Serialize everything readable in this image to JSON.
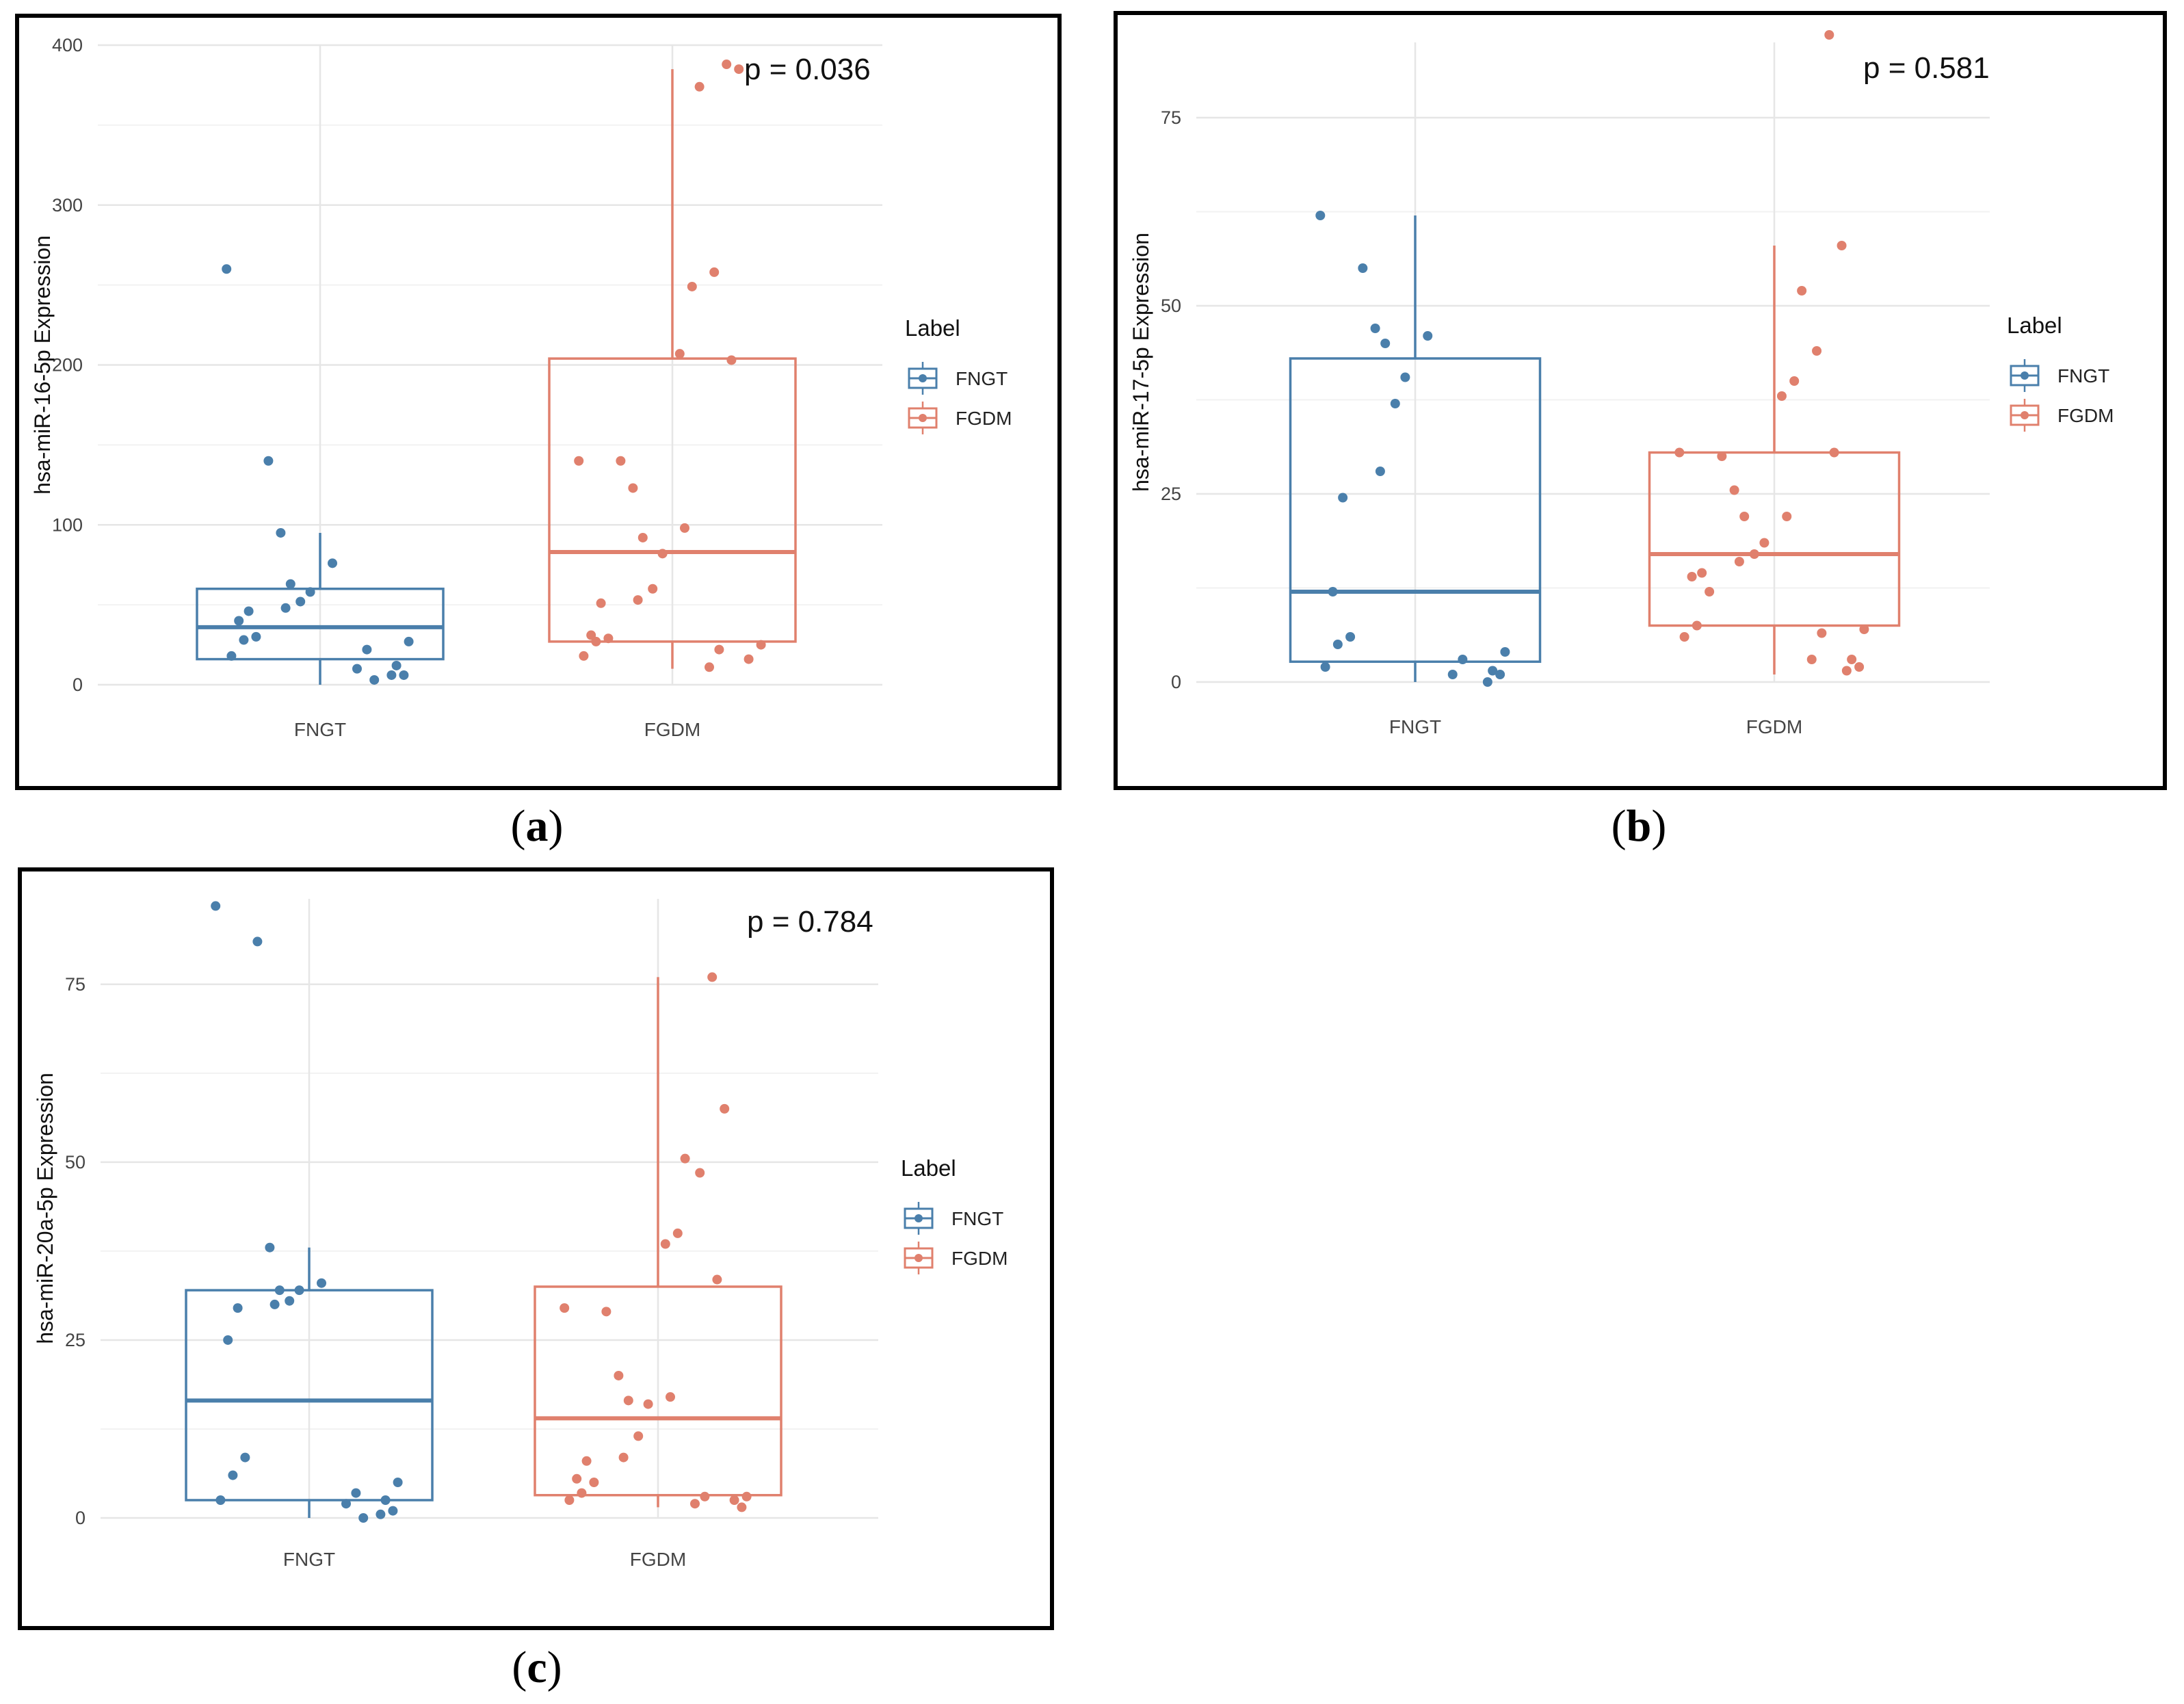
{
  "chart_data": [
    {
      "type": "box",
      "panel_label": "a",
      "ylabel": "hsa-miR-16-5p Expression",
      "categories": [
        "FNGT",
        "FGDM"
      ],
      "ylim": [
        0,
        400
      ],
      "yticks": [
        0,
        100,
        200,
        300,
        400
      ],
      "annotation": "p = 0.036",
      "legend_title": "Label",
      "legend_position": "right",
      "series": [
        {
          "name": "FNGT",
          "color": "#4a7fab",
          "box": {
            "q1": 16,
            "median": 36,
            "q3": 60,
            "whisker_low": 0,
            "whisker_high": 95
          },
          "points": [
            260,
            140,
            95,
            76,
            63,
            58,
            52,
            48,
            46,
            40,
            30,
            28,
            27,
            22,
            18,
            12,
            10,
            6,
            6,
            3
          ]
        },
        {
          "name": "FGDM",
          "color": "#e0806d",
          "box": {
            "q1": 27,
            "median": 83,
            "q3": 204,
            "whisker_low": 10,
            "whisker_high": 385
          },
          "points": [
            388,
            385,
            374,
            258,
            249,
            207,
            203,
            140,
            140,
            123,
            98,
            92,
            82,
            60,
            53,
            51,
            31,
            29,
            27,
            25,
            22,
            18,
            16,
            11
          ]
        }
      ]
    },
    {
      "type": "box",
      "panel_label": "b",
      "ylabel": "hsa-miR-17-5p Expression",
      "categories": [
        "FNGT",
        "FGDM"
      ],
      "ylim": [
        0,
        85
      ],
      "yticks": [
        0,
        25,
        50,
        75
      ],
      "annotation": "p = 0.581",
      "legend_title": "Label",
      "legend_position": "right",
      "series": [
        {
          "name": "FNGT",
          "color": "#4a7fab",
          "box": {
            "q1": 2.7,
            "median": 12,
            "q3": 43,
            "whisker_low": 0,
            "whisker_high": 62
          },
          "points": [
            62,
            55,
            47,
            46,
            45,
            40.5,
            37,
            28,
            24.5,
            12,
            6,
            5,
            4,
            3,
            2,
            1.5,
            1,
            1,
            0
          ]
        },
        {
          "name": "FGDM",
          "color": "#e0806d",
          "box": {
            "q1": 7.5,
            "median": 17,
            "q3": 30.5,
            "whisker_low": 1,
            "whisker_high": 58
          },
          "points": [
            86,
            58,
            52,
            44,
            40,
            38,
            30.5,
            30.5,
            30,
            25.5,
            22,
            22,
            18.5,
            17,
            16,
            14.5,
            14,
            12,
            7.5,
            7,
            6.5,
            6,
            3,
            3,
            2,
            1.5
          ]
        }
      ]
    },
    {
      "type": "box",
      "panel_label": "c",
      "ylabel": "hsa-miR-20a-5p Expression",
      "categories": [
        "FNGT",
        "FGDM"
      ],
      "ylim": [
        0,
        87
      ],
      "yticks": [
        0,
        25,
        50,
        75
      ],
      "annotation": "p = 0.784",
      "legend_title": "Label",
      "legend_position": "right",
      "series": [
        {
          "name": "FNGT",
          "color": "#4a7fab",
          "box": {
            "q1": 2.5,
            "median": 16.5,
            "q3": 32,
            "whisker_low": 0,
            "whisker_high": 38
          },
          "points": [
            86,
            81,
            38,
            33,
            32,
            32,
            30.5,
            30,
            29.5,
            25,
            8.5,
            6,
            5,
            3.5,
            2.5,
            2.5,
            2,
            1,
            0.5,
            0
          ]
        },
        {
          "name": "FGDM",
          "color": "#e0806d",
          "box": {
            "q1": 3.2,
            "median": 14,
            "q3": 32.5,
            "whisker_low": 1.5,
            "whisker_high": 76
          },
          "points": [
            76,
            57.5,
            50.5,
            48.5,
            40,
            38.5,
            33.5,
            29.5,
            29,
            20,
            17,
            16.5,
            16,
            11.5,
            8.5,
            8,
            5.5,
            5,
            3.5,
            3,
            3,
            2.5,
            2.5,
            2,
            1.5
          ]
        }
      ]
    }
  ]
}
